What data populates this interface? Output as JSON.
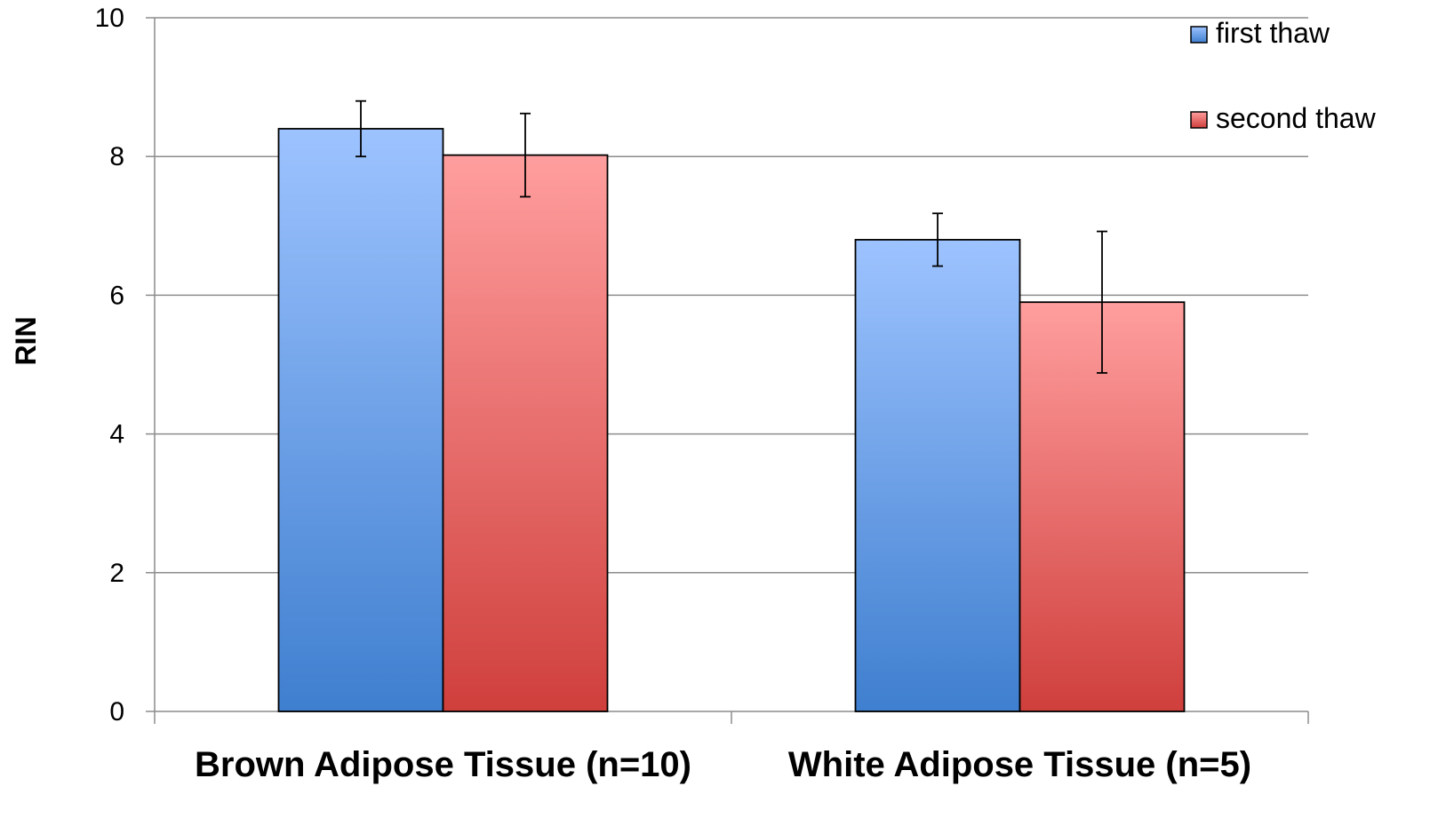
{
  "chart_data": {
    "type": "bar",
    "title": "",
    "xlabel": "",
    "ylabel": "RIN",
    "ylim": [
      0,
      10
    ],
    "yticks": [
      0,
      2,
      4,
      6,
      8,
      10
    ],
    "grid": true,
    "legend_position": "top-right",
    "categories": [
      "Brown Adipose Tissue (n=10)",
      "White Adipose Tissue (n=5)"
    ],
    "series": [
      {
        "name": "first thaw",
        "values": [
          8.4,
          6.8
        ],
        "error": [
          0.4,
          0.38
        ],
        "color_top": "#9dc3ff",
        "color_bottom": "#3f7fcf"
      },
      {
        "name": "second thaw",
        "values": [
          8.02,
          5.9
        ],
        "error": [
          0.6,
          1.02
        ],
        "color_top": "#ff9e9e",
        "color_bottom": "#cf3f3c"
      }
    ]
  }
}
